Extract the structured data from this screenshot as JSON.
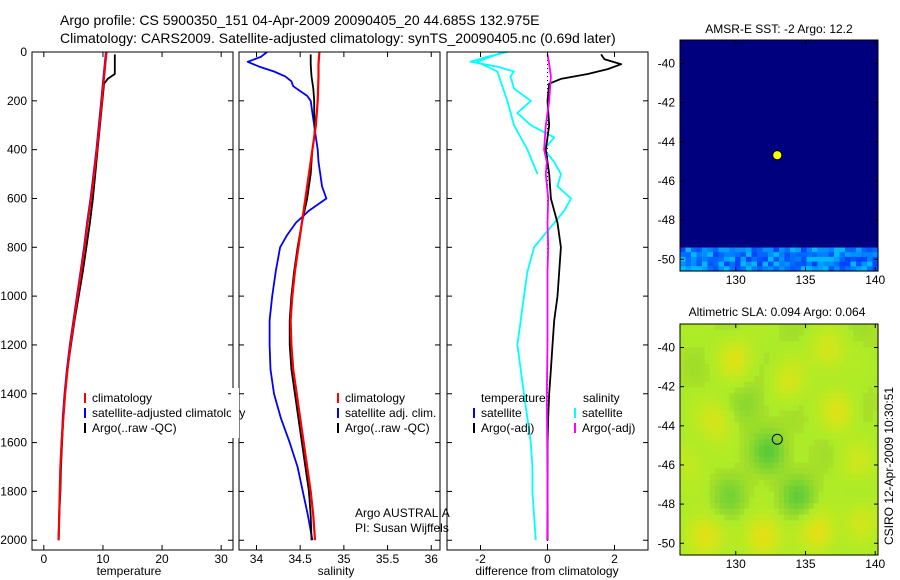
{
  "header": {
    "line1": "Argo profile: CS 5900350_151 04-Apr-2009 20090405_20 44.685S 132.975E",
    "line2": "Climatology: CARS2009. Satellite-adjusted climatology: synTS_20090405.nc (0.69d later)"
  },
  "side_stamp": "CSIRO 12-Apr-2009 10:30:51",
  "colors": {
    "climatology": "#ff0000",
    "satellite": "#0000ff",
    "argo": "#000000",
    "temp_satellite": "#00ffff",
    "salinity_adj": "#ff00ff",
    "sst_ocean": "#00007f"
  },
  "chart_data": [
    {
      "id": "temperature",
      "type": "line",
      "xlabel": "temperature",
      "ylabel": "",
      "xlim": [
        -2,
        32
      ],
      "ylim": [
        2040,
        0
      ],
      "xticks": [
        0,
        10,
        20,
        30
      ],
      "xtick_labels": [
        "0",
        "10",
        "20",
        "30"
      ],
      "yticks": [
        0,
        200,
        400,
        600,
        800,
        1000,
        1200,
        1400,
        1600,
        1800,
        2000
      ],
      "ytick_labels": [
        "0",
        "200",
        "400",
        "600",
        "800",
        "1000",
        "1200",
        "1400",
        "1600",
        "1800",
        "2000"
      ],
      "legend": [
        "climatology",
        "satellite-adjusted climatology",
        "Argo(..raw -QC)"
      ],
      "series": [
        {
          "name": "Argo(..raw -QC)",
          "color": "#000000",
          "depth": [
            10,
            50,
            90,
            110,
            130,
            200,
            300,
            400,
            500,
            600,
            700,
            800,
            900,
            1000,
            1100,
            1200,
            1300,
            1400,
            1500,
            1600,
            1700,
            1800,
            1900,
            2000
          ],
          "values": [
            12.0,
            12.0,
            12.0,
            10.8,
            10.2,
            9.9,
            9.5,
            9.1,
            8.7,
            8.3,
            7.8,
            7.2,
            6.6,
            5.9,
            5.2,
            4.6,
            4.0,
            3.6,
            3.3,
            3.1,
            2.9,
            2.8,
            2.6,
            2.5
          ]
        },
        {
          "name": "satellite-adjusted climatology",
          "color": "#0000ff",
          "depth": [
            0,
            50,
            100,
            200,
            300,
            400,
            500,
            600,
            700,
            800,
            900,
            1000,
            1100,
            1200,
            1300,
            1400,
            1500,
            1600,
            1700,
            1800,
            1900,
            2000
          ],
          "values": [
            10.5,
            10.3,
            10.1,
            9.7,
            9.3,
            8.9,
            8.4,
            7.9,
            7.3,
            6.8,
            6.2,
            5.6,
            5.0,
            4.4,
            3.9,
            3.5,
            3.2,
            3.0,
            2.8,
            2.7,
            2.6,
            2.5
          ]
        },
        {
          "name": "climatology",
          "color": "#ff0000",
          "depth": [
            0,
            50,
            100,
            200,
            300,
            400,
            500,
            600,
            700,
            800,
            900,
            1000,
            1100,
            1200,
            1300,
            1400,
            1500,
            1600,
            1700,
            1800,
            1900,
            2000
          ],
          "values": [
            10.6,
            10.4,
            10.2,
            9.8,
            9.4,
            9.0,
            8.5,
            8.0,
            7.4,
            6.9,
            6.3,
            5.7,
            5.1,
            4.5,
            4.0,
            3.6,
            3.3,
            3.0,
            2.8,
            2.7,
            2.6,
            2.5
          ]
        }
      ]
    },
    {
      "id": "salinity",
      "type": "line",
      "xlabel": "salinity",
      "ylabel": "",
      "xlim": [
        33.8,
        36.1
      ],
      "ylim": [
        2040,
        0
      ],
      "xticks": [
        34,
        34.5,
        35,
        35.5,
        36
      ],
      "xtick_labels": [
        "34",
        "34.5",
        "35",
        "35.5",
        "36"
      ],
      "legend": [
        "climatology",
        "satellite adj. clim.",
        "Argo(..raw -QC)"
      ],
      "annotation": [
        "Argo AUSTRALIA",
        "PI: Susan Wijffels"
      ],
      "series": [
        {
          "name": "satellite adj. clim.",
          "color": "#0000ff",
          "depth": [
            0,
            20,
            40,
            60,
            80,
            100,
            120,
            140,
            160,
            180,
            200,
            250,
            300,
            350,
            400,
            450,
            500,
            550,
            600,
            650,
            700,
            750,
            800,
            900,
            1000,
            1100,
            1200,
            1300,
            1400,
            1500,
            1600,
            1700,
            1800,
            1900,
            2000
          ],
          "values": [
            34.12,
            34.05,
            33.9,
            34.03,
            34.2,
            34.33,
            34.4,
            34.42,
            34.5,
            34.58,
            34.62,
            34.64,
            34.66,
            34.68,
            34.7,
            34.71,
            34.73,
            34.75,
            34.8,
            34.6,
            34.45,
            34.35,
            34.27,
            34.22,
            34.18,
            34.15,
            34.15,
            34.16,
            34.2,
            34.28,
            34.38,
            34.47,
            34.53,
            34.59,
            34.64
          ]
        },
        {
          "name": "Argo(..raw -QC)",
          "color": "#000000",
          "depth": [
            10,
            50,
            100,
            150,
            200,
            250,
            300,
            350,
            400,
            450,
            500,
            550,
            600,
            700,
            800,
            900,
            1000,
            1100,
            1200,
            1300,
            1400,
            1500,
            1600,
            1700,
            1800,
            1900,
            2000
          ],
          "values": [
            34.62,
            34.62,
            34.63,
            34.65,
            34.66,
            34.66,
            34.67,
            34.66,
            34.64,
            34.63,
            34.62,
            34.6,
            34.58,
            34.52,
            34.47,
            34.43,
            34.4,
            34.38,
            34.38,
            34.4,
            34.44,
            34.48,
            34.52,
            34.56,
            34.6,
            34.62,
            34.63
          ]
        },
        {
          "name": "climatology",
          "color": "#ff0000",
          "depth": [
            0,
            50,
            100,
            200,
            300,
            400,
            500,
            600,
            700,
            800,
            900,
            1000,
            1100,
            1200,
            1300,
            1400,
            1500,
            1600,
            1700,
            1800,
            1900,
            2000
          ],
          "values": [
            34.72,
            34.71,
            34.71,
            34.7,
            34.68,
            34.64,
            34.6,
            34.56,
            34.52,
            34.48,
            34.44,
            34.41,
            34.39,
            34.4,
            34.42,
            34.46,
            34.5,
            34.54,
            34.58,
            34.62,
            34.65,
            34.67
          ]
        }
      ]
    },
    {
      "id": "difference",
      "type": "line",
      "xlabel": "difference from climatology",
      "ylabel": "",
      "xlim": [
        -3,
        3
      ],
      "ylim": [
        2040,
        0
      ],
      "xticks": [
        -2,
        0,
        2
      ],
      "xtick_labels": [
        "-2",
        "0",
        "2"
      ],
      "legend_headers": [
        "temperature",
        "salinity"
      ],
      "legend": [
        "satellite",
        "Argo(-adj)",
        "satellite",
        "Argo(-adj)"
      ],
      "series": [
        {
          "name": "temperature satellite",
          "color": "#00ffff",
          "depth": [
            0,
            20,
            40,
            60,
            80,
            100,
            150,
            200,
            250,
            300,
            350,
            400,
            450,
            500,
            550,
            600,
            650,
            700,
            750,
            800,
            900,
            1000,
            1100,
            1200,
            1300,
            1400,
            1500,
            1600,
            1700,
            1800,
            1900,
            2000
          ],
          "values": [
            -1.2,
            -1.8,
            -2.3,
            -1.5,
            -1.0,
            -1.1,
            -1.0,
            -0.5,
            -0.9,
            -0.5,
            0.2,
            -0.1,
            0.2,
            0.4,
            0.3,
            0.7,
            0.5,
            0.2,
            -0.1,
            -0.4,
            -0.6,
            -0.7,
            -0.8,
            -0.9,
            -0.8,
            -0.7,
            -0.6,
            -0.5,
            -0.45,
            -0.45,
            -0.4,
            -0.35
          ]
        },
        {
          "name": "temperature Argo(-adj)",
          "color": "#000000",
          "depth": [
            10,
            30,
            50,
            70,
            90,
            110,
            130,
            200,
            300,
            400,
            500,
            600,
            700,
            800,
            900,
            1000,
            1100,
            1200,
            1300,
            1400,
            1500,
            1600,
            1700,
            1800,
            1900,
            2000
          ],
          "values": [
            1.6,
            1.7,
            2.2,
            1.8,
            1.2,
            0.4,
            0.05,
            0.0,
            0.05,
            -0.05,
            0.05,
            0.1,
            0.3,
            0.4,
            0.35,
            0.3,
            0.2,
            0.15,
            0.1,
            0.05,
            0.02,
            0.0,
            0.0,
            0.0,
            0.0,
            0.0
          ]
        },
        {
          "name": "salinity satellite",
          "color": "#00ffff",
          "depth": [
            0,
            40,
            80,
            120,
            200,
            300,
            400,
            500
          ],
          "values": [
            -1.3,
            -2.1,
            -1.5,
            -1.4,
            -1.2,
            -1.0,
            -0.6,
            -0.3
          ]
        },
        {
          "name": "salinity Argo(-adj)",
          "color": "#ff00ff",
          "depth": [
            10,
            50,
            100,
            200,
            300,
            400,
            450,
            500,
            600,
            700,
            800,
            900,
            1000,
            1200,
            1400,
            1600,
            1800,
            2000
          ],
          "values": [
            0.0,
            0.05,
            0.1,
            0.05,
            -0.05,
            -0.1,
            -0.02,
            -0.05,
            0.02,
            0.0,
            0.02,
            0.0,
            0.0,
            0.0,
            -0.02,
            -0.01,
            0.0,
            -0.01
          ]
        }
      ]
    },
    {
      "id": "sst_map",
      "type": "heatmap",
      "title": "AMSR-E SST: -2 Argo: 12.2",
      "xlim": [
        126,
        140.2
      ],
      "ylim": [
        -50.6,
        -38.8
      ],
      "xticks": [
        130,
        135,
        140
      ],
      "xtick_labels": [
        "130",
        "135",
        "140"
      ],
      "yticks": [
        -40,
        -42,
        -44,
        -46,
        -48,
        -50
      ],
      "ytick_labels": [
        "-40",
        "-42",
        "-44",
        "-46",
        "-48",
        "-50"
      ],
      "background_value": "land/no data (dark navy)",
      "valid_band_lat": [
        -50.6,
        -49.4
      ],
      "argo_position": {
        "lon": 132.975,
        "lat": -44.685
      }
    },
    {
      "id": "sla_map",
      "type": "heatmap",
      "title": "Altimetric SLA: 0.094 Argo: 0.064",
      "xlim": [
        126,
        140.2
      ],
      "ylim": [
        -50.6,
        -38.8
      ],
      "xticks": [
        130,
        135,
        140
      ],
      "xtick_labels": [
        "130",
        "135",
        "140"
      ],
      "yticks": [
        -40,
        -42,
        -44,
        -46,
        -48,
        -50
      ],
      "ytick_labels": [
        "-40",
        "-42",
        "-44",
        "-46",
        "-48",
        "-50"
      ],
      "argo_position": {
        "lon": 132.975,
        "lat": -44.685
      }
    }
  ]
}
